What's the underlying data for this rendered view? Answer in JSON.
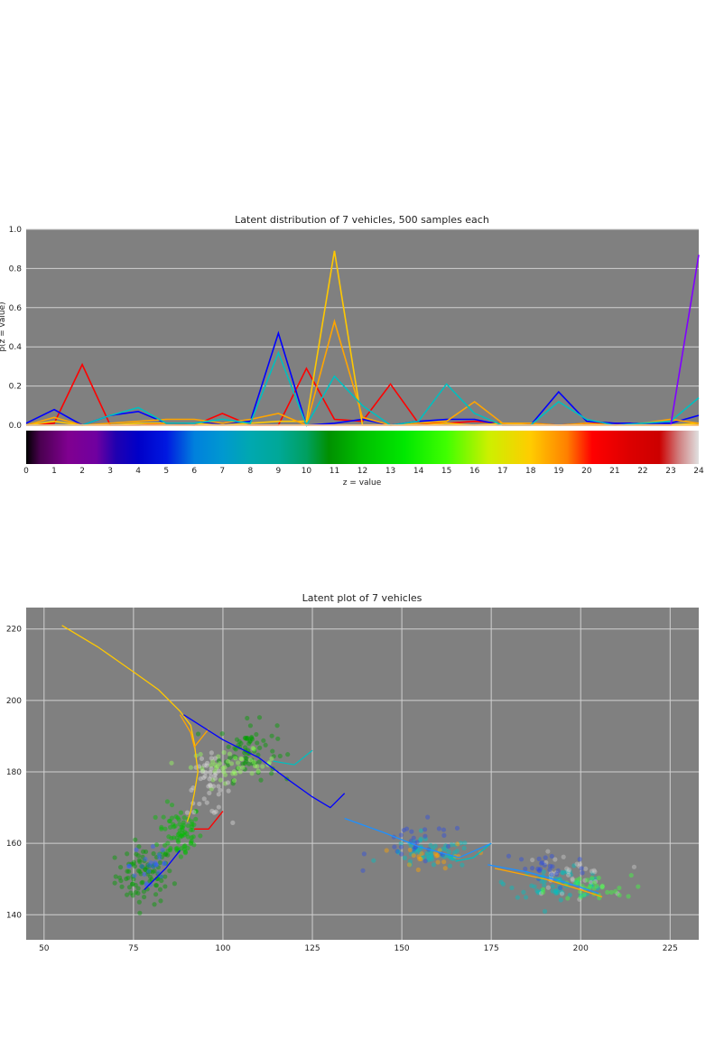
{
  "chart_data": [
    {
      "type": "line",
      "title": "Latent distribution of 7 vehicles, 500 samples each",
      "xlabel": "z = value",
      "ylabel": "p(z = value)",
      "xlim": [
        0,
        24
      ],
      "ylim": [
        0,
        1.0
      ],
      "grid": true,
      "x_ticks": [
        0,
        1,
        2,
        3,
        4,
        5,
        6,
        7,
        8,
        9,
        10,
        11,
        12,
        13,
        14,
        15,
        16,
        17,
        18,
        19,
        20,
        21,
        22,
        23,
        24
      ],
      "y_ticks": [
        0.0,
        0.2,
        0.4,
        0.6,
        0.8,
        1.0
      ],
      "x": [
        0,
        1,
        2,
        3,
        4,
        5,
        6,
        7,
        8,
        9,
        10,
        11,
        12,
        13,
        14,
        15,
        16,
        17,
        18,
        19,
        20,
        21,
        22,
        23,
        24
      ],
      "colorbar": {
        "type": "colormap-strip",
        "stops": [
          {
            "v": 0,
            "color": "#000000"
          },
          {
            "v": 0.5,
            "color": "#4a0050"
          },
          {
            "v": 1.5,
            "color": "#800090"
          },
          {
            "v": 2.5,
            "color": "#7000a0"
          },
          {
            "v": 3.2,
            "color": "#2000b0"
          },
          {
            "v": 4,
            "color": "#0000c8"
          },
          {
            "v": 5,
            "color": "#0018e0"
          },
          {
            "v": 6,
            "color": "#0080dd"
          },
          {
            "v": 7,
            "color": "#0098d0"
          },
          {
            "v": 8,
            "color": "#00a8b0"
          },
          {
            "v": 9,
            "color": "#00a898"
          },
          {
            "v": 10,
            "color": "#00a060"
          },
          {
            "v": 10.8,
            "color": "#009000"
          },
          {
            "v": 12,
            "color": "#00c000"
          },
          {
            "v": 13.5,
            "color": "#00e800"
          },
          {
            "v": 15,
            "color": "#40ff00"
          },
          {
            "v": 16.5,
            "color": "#ccf000"
          },
          {
            "v": 18,
            "color": "#ffcc00"
          },
          {
            "v": 19.3,
            "color": "#ff8000"
          },
          {
            "v": 20.2,
            "color": "#ff0000"
          },
          {
            "v": 21.5,
            "color": "#dd0000"
          },
          {
            "v": 22.6,
            "color": "#cc0000"
          },
          {
            "v": 23.3,
            "color": "#d08080"
          },
          {
            "v": 24,
            "color": "#e0e0e0"
          }
        ]
      },
      "series": [
        {
          "color": "#ff0000",
          "values": [
            0.0,
            0.01,
            0.31,
            0.0,
            0.0,
            0.01,
            0.0,
            0.06,
            0.0,
            0.0,
            0.29,
            0.03,
            0.02,
            0.21,
            0.01,
            0.01,
            0.02,
            0.01,
            0.01,
            0.0,
            0.01,
            0.01,
            0.0,
            0.0,
            0.0
          ]
        },
        {
          "color": "#0000ff",
          "values": [
            0.01,
            0.08,
            0.0,
            0.05,
            0.07,
            0.01,
            0.01,
            0.01,
            0.02,
            0.47,
            0.0,
            0.01,
            0.03,
            0.0,
            0.02,
            0.03,
            0.03,
            0.0,
            0.0,
            0.17,
            0.02,
            0.01,
            0.01,
            0.01,
            0.05
          ]
        },
        {
          "color": "#ffc800",
          "values": [
            0.0,
            0.02,
            0.0,
            0.0,
            0.01,
            0.01,
            0.01,
            0.0,
            0.01,
            0.02,
            0.02,
            0.89,
            0.0,
            0.0,
            0.0,
            0.01,
            0.0,
            0.01,
            0.0,
            0.0,
            0.0,
            0.0,
            0.0,
            0.0,
            0.01
          ]
        },
        {
          "color": "#ffa500",
          "values": [
            0.0,
            0.04,
            0.0,
            0.01,
            0.02,
            0.03,
            0.03,
            0.01,
            0.03,
            0.06,
            0.0,
            0.53,
            0.04,
            0.0,
            0.01,
            0.02,
            0.12,
            0.01,
            0.01,
            0.0,
            0.01,
            0.0,
            0.01,
            0.03,
            0.01
          ]
        },
        {
          "color": "#00bfbf",
          "values": [
            0.0,
            0.0,
            0.0,
            0.05,
            0.09,
            0.01,
            0.01,
            0.03,
            0.01,
            0.37,
            0.0,
            0.25,
            0.1,
            0.0,
            0.02,
            0.21,
            0.06,
            0.0,
            0.0,
            0.12,
            0.03,
            0.0,
            0.01,
            0.02,
            0.14
          ]
        },
        {
          "color": "#8000ff",
          "values": [
            0.0,
            0.0,
            0.0,
            0.0,
            0.0,
            0.0,
            0.0,
            0.0,
            0.0,
            0.0,
            0.0,
            0.0,
            0.0,
            0.0,
            0.0,
            0.0,
            0.0,
            0.0,
            0.0,
            0.0,
            0.0,
            0.0,
            0.0,
            0.0,
            0.87
          ]
        },
        {
          "color": "#ffe080",
          "values": [
            0.0,
            0.0,
            0.0,
            0.0,
            0.0,
            0.0,
            0.0,
            0.0,
            0.0,
            0.0,
            0.0,
            0.0,
            0.0,
            0.0,
            0.0,
            0.0,
            0.0,
            0.0,
            0.0,
            0.0,
            0.0,
            0.0,
            0.0,
            0.0,
            0.0
          ]
        }
      ]
    },
    {
      "type": "scatter",
      "title": "Latent plot of 7 vehicles",
      "xlabel": "",
      "ylabel": "",
      "xlim": [
        45,
        233
      ],
      "ylim": [
        133,
        226
      ],
      "grid": true,
      "x_ticks": [
        50,
        75,
        100,
        125,
        150,
        175,
        200,
        225
      ],
      "y_ticks": [
        140,
        160,
        180,
        200,
        220
      ],
      "paths": [
        {
          "color": "#ffc800",
          "points": [
            [
              55,
              221
            ],
            [
              65,
              215
            ],
            [
              75,
              208
            ],
            [
              82,
              203
            ],
            [
              88,
              197
            ],
            [
              91,
              193
            ],
            [
              92,
              188
            ],
            [
              93,
              180
            ],
            [
              92,
              174
            ],
            [
              91,
              169
            ],
            [
              90,
              166
            ]
          ]
        },
        {
          "color": "#ffa500",
          "points": [
            [
              88,
              196
            ],
            [
              91,
              191
            ],
            [
              92,
              187
            ],
            [
              96,
              192
            ]
          ]
        },
        {
          "color": "#0000ff",
          "points": [
            [
              89,
              196
            ],
            [
              100,
              189
            ],
            [
              110,
              184
            ],
            [
              118,
              178
            ],
            [
              125,
              173
            ],
            [
              130,
              170
            ],
            [
              134,
              174
            ]
          ]
        },
        {
          "color": "#0000ff",
          "points": [
            [
              88,
              158
            ],
            [
              84,
              153
            ],
            [
              78,
              147
            ]
          ]
        },
        {
          "color": "#00bfbf",
          "points": [
            [
              114,
              183
            ],
            [
              120,
              182
            ],
            [
              125,
              186
            ]
          ]
        },
        {
          "color": "#00bfbf",
          "points": [
            [
              165,
              155
            ],
            [
              170,
              156
            ],
            [
              175,
              160
            ]
          ]
        },
        {
          "color": "#1e90ff",
          "points": [
            [
              134,
              167
            ],
            [
              145,
              163
            ],
            [
              155,
              159
            ],
            [
              166,
              156
            ],
            [
              175,
              160
            ]
          ]
        },
        {
          "color": "#1e90ff",
          "points": [
            [
              174,
              154
            ],
            [
              185,
              152
            ],
            [
              196,
              149
            ],
            [
              205,
              146
            ]
          ]
        },
        {
          "color": "#ff0000",
          "points": [
            [
              92,
              164
            ],
            [
              96,
              164
            ],
            [
              100,
              169
            ]
          ]
        },
        {
          "color": "#ffa500",
          "points": [
            [
              176,
              153
            ],
            [
              190,
              150
            ],
            [
              200,
              147
            ],
            [
              206,
              145
            ]
          ]
        }
      ],
      "clusters": [
        {
          "color": "#00a000",
          "center": [
            78,
            151
          ],
          "spread": [
            4,
            4
          ],
          "count": 90
        },
        {
          "color": "#00bf00",
          "center": [
            88,
            163
          ],
          "spread": [
            3,
            4
          ],
          "count": 80
        },
        {
          "color": "#00a000",
          "center": [
            107,
            186
          ],
          "spread": [
            4,
            4
          ],
          "count": 70
        },
        {
          "color": "#9aff60",
          "center": [
            103,
            182
          ],
          "spread": [
            6,
            2
          ],
          "count": 50
        },
        {
          "color": "#d8d8d8",
          "center": [
            96,
            176
          ],
          "spread": [
            3,
            4
          ],
          "count": 45
        },
        {
          "color": "#3060ff",
          "center": [
            80,
            154
          ],
          "spread": [
            3,
            5
          ],
          "count": 25
        },
        {
          "color": "#00c0c0",
          "center": [
            158,
            157
          ],
          "spread": [
            6,
            2
          ],
          "count": 60
        },
        {
          "color": "#3050e0",
          "center": [
            155,
            160
          ],
          "spread": [
            7,
            3
          ],
          "count": 30
        },
        {
          "color": "#ffa500",
          "center": [
            160,
            156
          ],
          "spread": [
            5,
            2
          ],
          "count": 20
        },
        {
          "color": "#00c0c0",
          "center": [
            194,
            149
          ],
          "spread": [
            7,
            2
          ],
          "count": 60
        },
        {
          "color": "#c8c8c8",
          "center": [
            196,
            151
          ],
          "spread": [
            6,
            3
          ],
          "count": 35
        },
        {
          "color": "#40ff40",
          "center": [
            202,
            147
          ],
          "spread": [
            6,
            2
          ],
          "count": 35
        },
        {
          "color": "#3050e0",
          "center": [
            190,
            153
          ],
          "spread": [
            6,
            3
          ],
          "count": 25
        }
      ]
    }
  ]
}
